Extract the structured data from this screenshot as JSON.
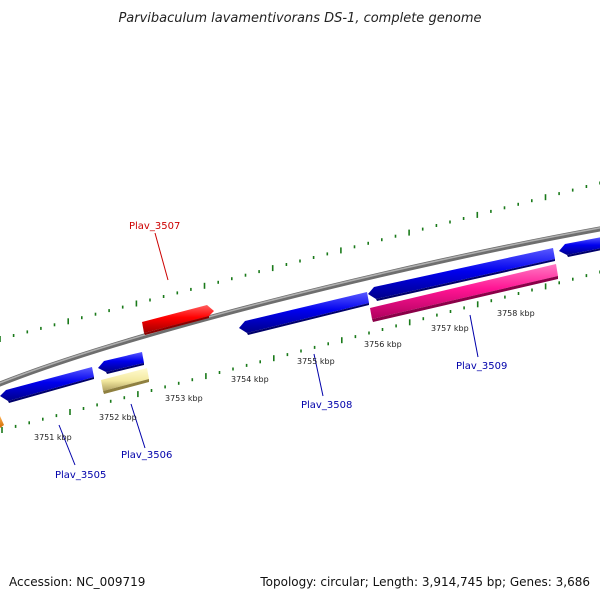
{
  "title": "Parvibaculum lavamentivorans DS-1, complete genome",
  "footer": {
    "accession": "Accession: NC_009719",
    "summary": "Topology: circular; Length: 3,914,745 bp; Genes: 3,686"
  },
  "tick_labels": [
    "3751 kbp",
    "3752 kbp",
    "3753 kbp",
    "3754 kbp",
    "3755 kbp",
    "3756 kbp",
    "3757 kbp",
    "3758 kbp"
  ],
  "gene_labels": [
    {
      "id": "plav_3505",
      "text": "Plav_3505",
      "color": "#0000aa"
    },
    {
      "id": "plav_3506",
      "text": "Plav_3506",
      "color": "#0000aa"
    },
    {
      "id": "plav_3507",
      "text": "Plav_3507",
      "color": "#cc0000"
    },
    {
      "id": "plav_3508",
      "text": "Plav_3508",
      "color": "#0000aa"
    },
    {
      "id": "plav_3509",
      "text": "Plav_3509",
      "color": "#0000aa"
    }
  ],
  "colors": {
    "backbone": "#888888",
    "tick": "#1a7a1a",
    "forward_cds": "#ff0000",
    "reverse_cds": "#0000ee",
    "pseudo_or_rna": "#f0e68c",
    "rrna": "#ff1493",
    "other": "#ff8c00"
  }
}
